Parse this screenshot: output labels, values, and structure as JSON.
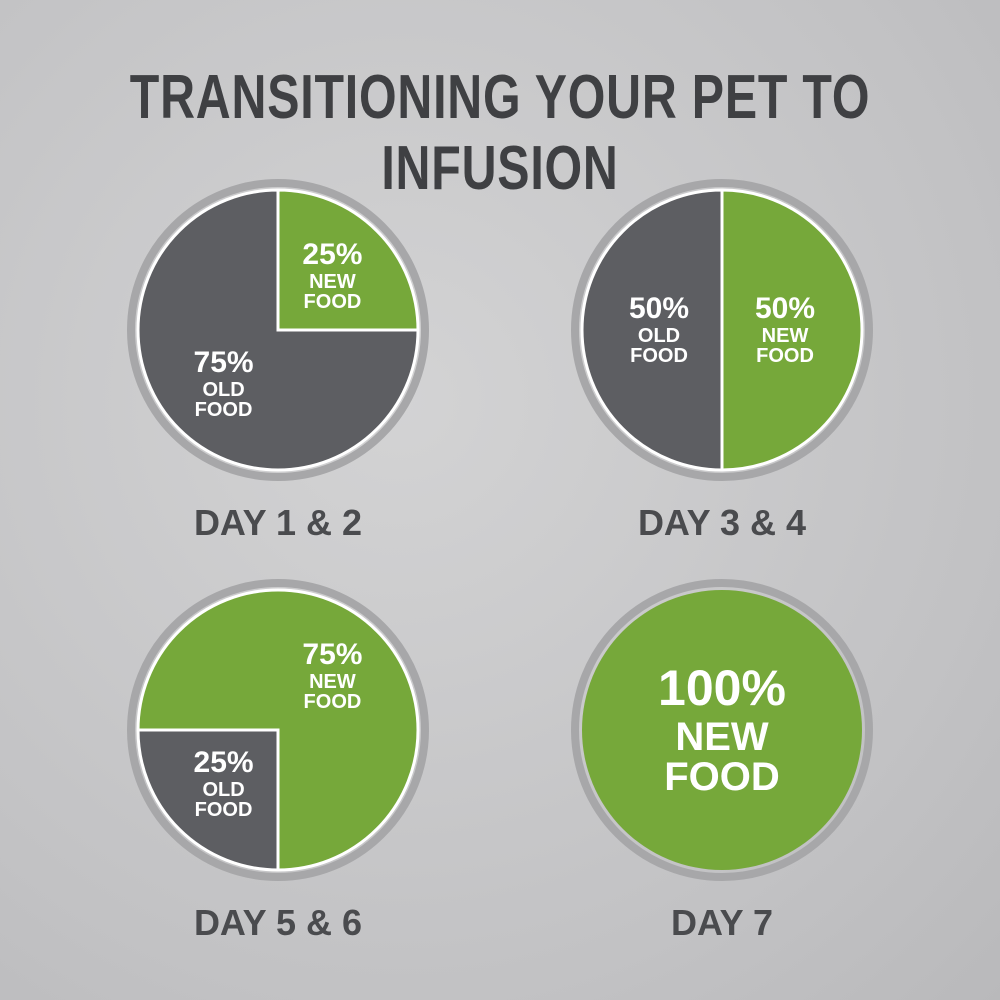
{
  "title": "TRANSITIONING YOUR PET TO INFUSION",
  "chart_data": [
    {
      "type": "pie",
      "title": "DAY 1 & 2",
      "categories": [
        "NEW FOOD",
        "OLD FOOD"
      ],
      "values": [
        25,
        75
      ],
      "value_labels": [
        "25%",
        "75%"
      ],
      "colors": [
        "#76a83a",
        "#5d5e62"
      ],
      "start_angle": 0
    },
    {
      "type": "pie",
      "title": "DAY 3 & 4",
      "categories": [
        "NEW FOOD",
        "OLD FOOD"
      ],
      "values": [
        50,
        50
      ],
      "value_labels": [
        "50%",
        "50%"
      ],
      "colors": [
        "#76a83a",
        "#5d5e62"
      ],
      "start_angle": 0
    },
    {
      "type": "pie",
      "title": "DAY 5 & 6",
      "categories": [
        "NEW FOOD",
        "OLD FOOD"
      ],
      "values": [
        75,
        25
      ],
      "value_labels": [
        "75%",
        "25%"
      ],
      "colors": [
        "#76a83a",
        "#5d5e62"
      ],
      "start_angle": 270
    },
    {
      "type": "pie",
      "title": "DAY 7",
      "categories": [
        "NEW FOOD"
      ],
      "values": [
        100
      ],
      "value_labels": [
        "100%"
      ],
      "colors": [
        "#76a83a"
      ],
      "start_angle": 0
    }
  ]
}
